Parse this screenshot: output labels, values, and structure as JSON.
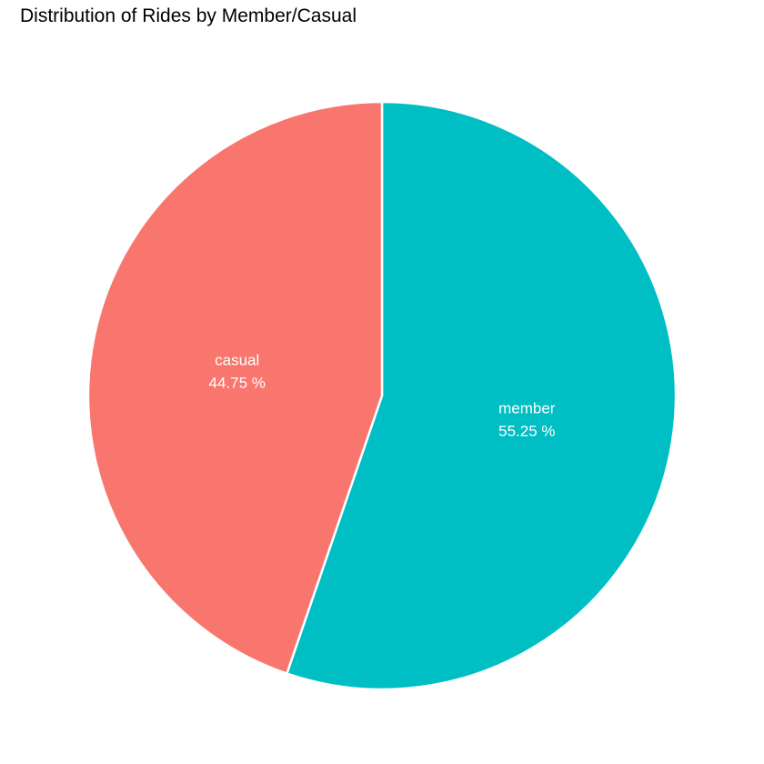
{
  "chart_data": {
    "type": "pie",
    "title": "Distribution of Rides by Member/Casual",
    "slices": [
      {
        "category": "member",
        "value": 55.25,
        "label": "55.25 %",
        "color": "#00BFC4"
      },
      {
        "category": "casual",
        "value": 44.75,
        "label": "44.75 %",
        "color": "#F8766D"
      }
    ],
    "start_angle": "12 o'clock",
    "direction": "clockwise",
    "slice_border_color": "#ffffff",
    "legend": "none"
  }
}
